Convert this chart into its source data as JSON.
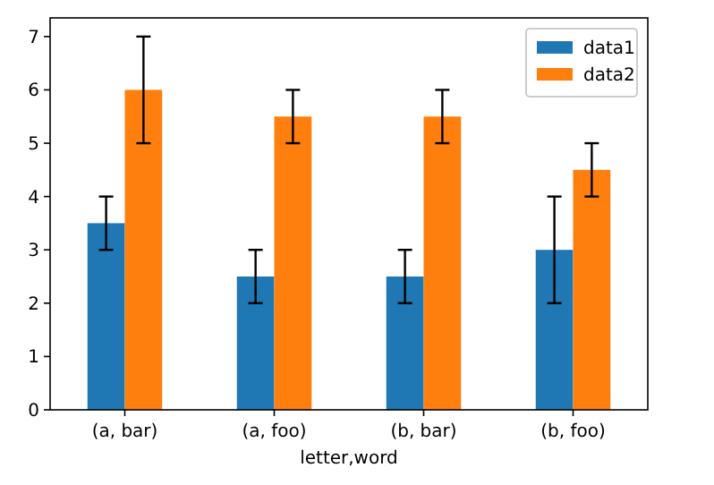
{
  "chart_data": {
    "type": "bar",
    "xlabel": "letter,word",
    "categories": [
      "(a, bar)",
      "(a, foo)",
      "(b, bar)",
      "(b, foo)"
    ],
    "series": [
      {
        "name": "data1",
        "color": "#1f77b4",
        "values": [
          3.5,
          2.5,
          2.5,
          3
        ],
        "errors": [
          0.5,
          0.5,
          0.5,
          1
        ]
      },
      {
        "name": "data2",
        "color": "#ff7f0e",
        "values": [
          6,
          5.5,
          5.5,
          4.5
        ],
        "errors": [
          1,
          0.5,
          0.5,
          0.5
        ]
      }
    ],
    "ylim": [
      0,
      7.35
    ],
    "yticks": [
      0,
      1,
      2,
      3,
      4,
      5,
      6,
      7
    ],
    "legend": "top right"
  }
}
